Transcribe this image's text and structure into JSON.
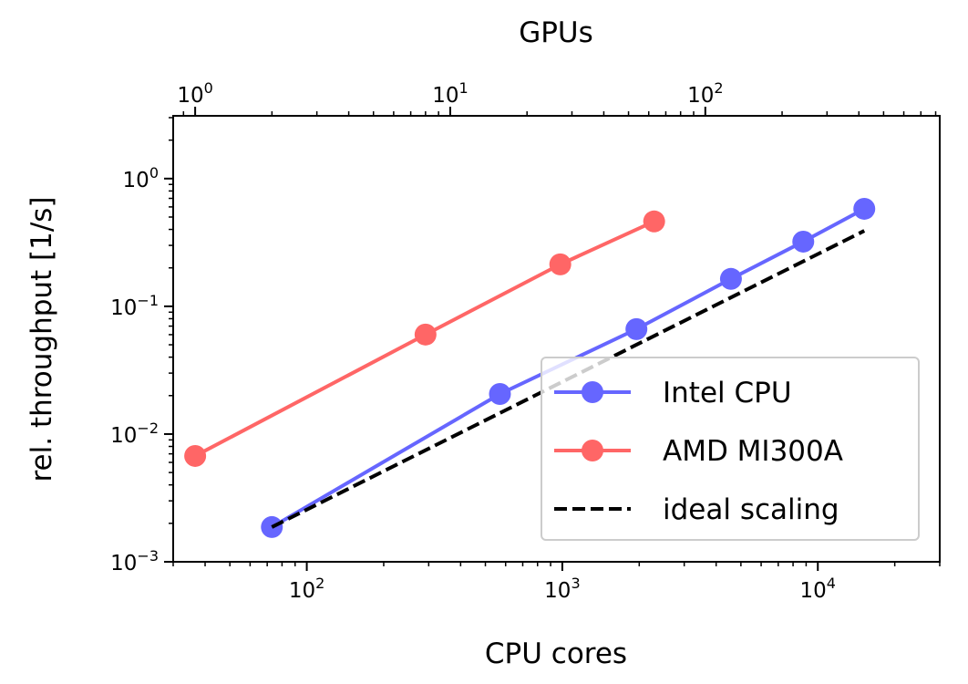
{
  "chart_data": {
    "type": "line",
    "xlabel": "CPU cores",
    "x2label": "GPUs",
    "ylabel": "rel. throughput [1/s]",
    "xscale": "log",
    "x2scale": "log",
    "yscale": "log",
    "xlim": [
      30,
      30000
    ],
    "x2lim": [
      0.82,
      830
    ],
    "ylim": [
      0.001,
      3.1
    ],
    "xticks": [
      {
        "v": 100,
        "e": "2"
      },
      {
        "v": 1000,
        "e": "3"
      },
      {
        "v": 10000,
        "e": "4"
      }
    ],
    "x2ticks": [
      {
        "v": 1,
        "e": "0"
      },
      {
        "v": 10,
        "e": "1"
      },
      {
        "v": 100,
        "e": "2"
      }
    ],
    "yticks": [
      {
        "v": 0.001,
        "e": "−3"
      },
      {
        "v": 0.01,
        "e": "−2"
      },
      {
        "v": 0.1,
        "e": "−1"
      },
      {
        "v": 1,
        "e": "0"
      }
    ],
    "grid": false,
    "legend_position": "lower-right",
    "series": [
      {
        "name": "Intel CPU",
        "axis": "bottom",
        "color": "#6666ff",
        "style": "solid-marker",
        "x": [
          73,
          570,
          1950,
          4570,
          8770,
          15200
        ],
        "y": [
          0.00187,
          0.0206,
          0.0663,
          0.164,
          0.321,
          0.58
        ]
      },
      {
        "name": "AMD MI300A",
        "axis": "top",
        "color": "#ff6666",
        "style": "solid-marker",
        "x": [
          1,
          8,
          27,
          63
        ],
        "y": [
          0.00674,
          0.0601,
          0.213,
          0.462
        ]
      },
      {
        "name": "ideal scaling",
        "axis": "bottom",
        "color": "#000000",
        "style": "dashed",
        "x": [
          73,
          15200
        ],
        "y": [
          0.00187,
          0.39
        ]
      }
    ]
  }
}
